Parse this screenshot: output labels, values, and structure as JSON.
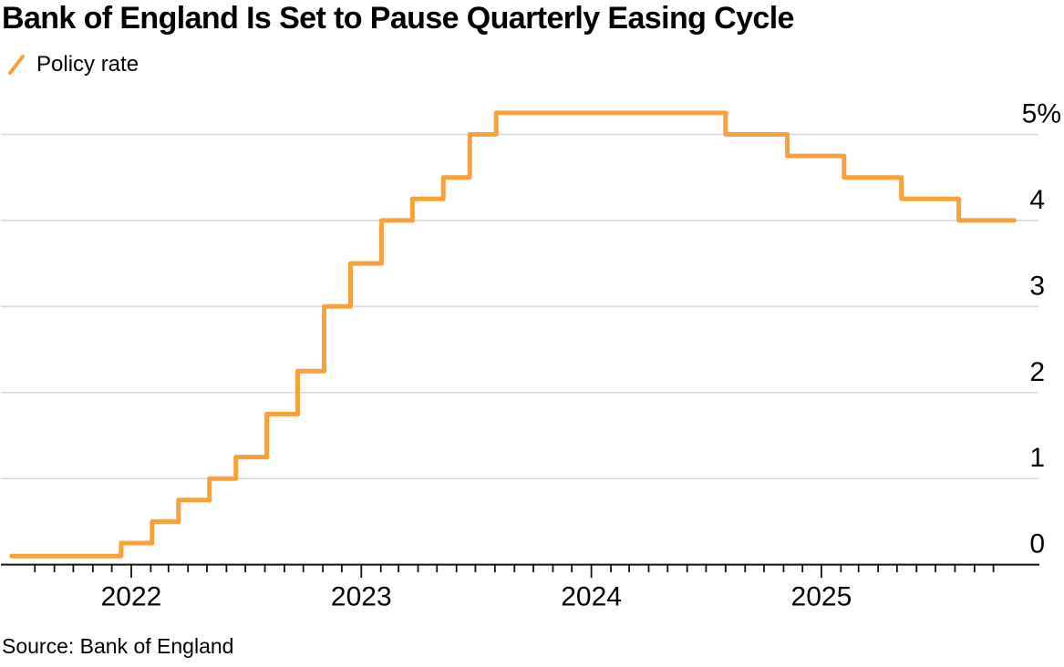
{
  "header": {
    "title": "Bank of England Is Set to Pause Quarterly Easing Cycle",
    "legend_label": "Policy rate"
  },
  "footer": {
    "source": "Source: Bank of England"
  },
  "colors": {
    "accent": "#F8A13A",
    "grid": "#D8D8D8",
    "axis": "#111111",
    "text": "#000000"
  },
  "chart_data": {
    "type": "line",
    "subtype": "step-after",
    "title": "Bank of England Is Set to Pause Quarterly Easing Cycle",
    "legend": [
      "Policy rate"
    ],
    "legend_position": "top-left",
    "grid": "horizontal",
    "ylim": [
      0,
      5.5
    ],
    "y_ticks": [
      {
        "value": 0,
        "label": "0"
      },
      {
        "value": 1,
        "label": "1"
      },
      {
        "value": 2,
        "label": "2"
      },
      {
        "value": 3,
        "label": "3"
      },
      {
        "value": 4,
        "label": "4"
      },
      {
        "value": 5,
        "label": "5%"
      }
    ],
    "x_year_labels": [
      "2022",
      "2023",
      "2024",
      "2025"
    ],
    "x_minor_ticks": {
      "unit": "month",
      "first": "2021-08",
      "last": "2025-10"
    },
    "x_range": {
      "start": "2021-06-25",
      "end": "2025-11-03"
    },
    "series": [
      {
        "name": "Policy rate",
        "color": "#F8A13A",
        "points": [
          [
            "2021-06-25",
            0.1
          ],
          [
            "2021-12-16",
            0.25
          ],
          [
            "2022-02-03",
            0.5
          ],
          [
            "2022-03-17",
            0.75
          ],
          [
            "2022-05-05",
            1.0
          ],
          [
            "2022-06-16",
            1.25
          ],
          [
            "2022-08-04",
            1.75
          ],
          [
            "2022-09-22",
            2.25
          ],
          [
            "2022-11-03",
            3.0
          ],
          [
            "2022-12-15",
            3.5
          ],
          [
            "2023-02-02",
            4.0
          ],
          [
            "2023-03-23",
            4.25
          ],
          [
            "2023-05-11",
            4.5
          ],
          [
            "2023-06-22",
            5.0
          ],
          [
            "2023-08-03",
            5.25
          ],
          [
            "2024-08-01",
            5.0
          ],
          [
            "2024-11-07",
            4.75
          ],
          [
            "2025-02-06",
            4.5
          ],
          [
            "2025-05-08",
            4.25
          ],
          [
            "2025-08-07",
            4.0
          ],
          [
            "2025-11-03",
            4.0
          ]
        ]
      }
    ],
    "source": "Source: Bank of England"
  }
}
